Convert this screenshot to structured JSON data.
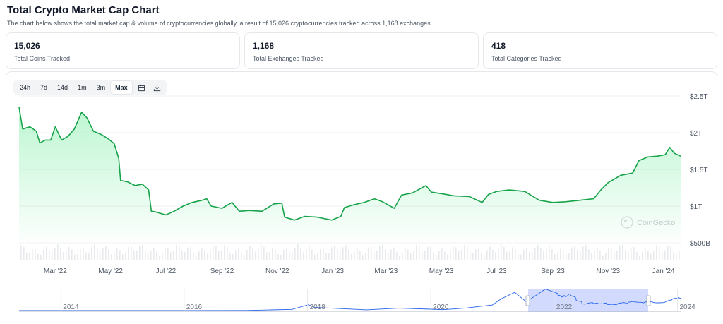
{
  "header": {
    "title": "Total Crypto Market Cap Chart",
    "subtitle": "The chart below shows the total market cap & volume of cryptocurrencies globally, a result of 15,026 cryptocurrencies tracked across 1,168 exchanges."
  },
  "stats": [
    {
      "value": "15,026",
      "label": "Total Coins Tracked"
    },
    {
      "value": "1,168",
      "label": "Total Exchanges Tracked"
    },
    {
      "value": "418",
      "label": "Total Categories Tracked"
    }
  ],
  "toolbar": {
    "ranges": [
      "24h",
      "7d",
      "14d",
      "1m",
      "3m",
      "Max"
    ],
    "active": "Max",
    "icons": [
      "calendar-icon",
      "download-icon"
    ]
  },
  "watermark": "CoinGecko",
  "colors": {
    "line": "#16a34a",
    "area_top": "#86efac",
    "nav_line": "#2563eb",
    "nav_selection": "#c7d2fe",
    "volume": "#d1d5db"
  },
  "chart_data": {
    "type": "area",
    "y_unit": "USD",
    "ylim": [
      500000000000,
      2500000000000
    ],
    "yticks": [
      {
        "value": 500000000000,
        "label": "$500B"
      },
      {
        "value": 1000000000000,
        "label": "$1T"
      },
      {
        "value": 1500000000000,
        "label": "$1.5T"
      },
      {
        "value": 2000000000000,
        "label": "$2T"
      },
      {
        "value": 2500000000000,
        "label": "$2.5T"
      }
    ],
    "xlim": [
      "2022-01-20",
      "2024-01-20"
    ],
    "xticks": [
      {
        "date": "2022-03-01",
        "label": "Mar '22"
      },
      {
        "date": "2022-05-01",
        "label": "May '22"
      },
      {
        "date": "2022-07-01",
        "label": "Jul '22"
      },
      {
        "date": "2022-09-01",
        "label": "Sep '22"
      },
      {
        "date": "2022-11-01",
        "label": "Nov '22"
      },
      {
        "date": "2023-01-01",
        "label": "Jan '23"
      },
      {
        "date": "2023-03-01",
        "label": "Mar '23"
      },
      {
        "date": "2023-05-01",
        "label": "May '23"
      },
      {
        "date": "2023-07-01",
        "label": "Jul '23"
      },
      {
        "date": "2023-09-01",
        "label": "Sep '23"
      },
      {
        "date": "2023-11-01",
        "label": "Nov '23"
      },
      {
        "date": "2024-01-01",
        "label": "Jan '24"
      }
    ],
    "grid": true,
    "series": [
      {
        "data": [
          [
            "2022-01-20",
            2350000000000.0
          ],
          [
            "2022-01-24",
            2050000000000.0
          ],
          [
            "2022-02-01",
            2080000000000.0
          ],
          [
            "2022-02-08",
            2020000000000.0
          ],
          [
            "2022-02-12",
            1860000000000.0
          ],
          [
            "2022-02-18",
            1900000000000.0
          ],
          [
            "2022-02-24",
            1900000000000.0
          ],
          [
            "2022-03-01",
            2080000000000.0
          ],
          [
            "2022-03-08",
            1900000000000.0
          ],
          [
            "2022-03-15",
            1950000000000.0
          ],
          [
            "2022-03-22",
            2050000000000.0
          ],
          [
            "2022-03-30",
            2280000000000.0
          ],
          [
            "2022-04-05",
            2200000000000.0
          ],
          [
            "2022-04-12",
            2020000000000.0
          ],
          [
            "2022-04-20",
            1980000000000.0
          ],
          [
            "2022-04-28",
            1920000000000.0
          ],
          [
            "2022-05-05",
            1850000000000.0
          ],
          [
            "2022-05-10",
            1650000000000.0
          ],
          [
            "2022-05-12",
            1350000000000.0
          ],
          [
            "2022-05-20",
            1330000000000.0
          ],
          [
            "2022-05-28",
            1280000000000.0
          ],
          [
            "2022-06-05",
            1300000000000.0
          ],
          [
            "2022-06-12",
            1220000000000.0
          ],
          [
            "2022-06-15",
            930000000000.0
          ],
          [
            "2022-06-20",
            920000000000.0
          ],
          [
            "2022-07-01",
            880000000000.0
          ],
          [
            "2022-07-10",
            930000000000.0
          ],
          [
            "2022-07-20",
            1000000000000.0
          ],
          [
            "2022-07-30",
            1050000000000.0
          ],
          [
            "2022-08-10",
            1080000000000.0
          ],
          [
            "2022-08-15",
            1100000000000.0
          ],
          [
            "2022-08-20",
            1000000000000.0
          ],
          [
            "2022-09-01",
            970000000000.0
          ],
          [
            "2022-09-12",
            1050000000000.0
          ],
          [
            "2022-09-20",
            930000000000.0
          ],
          [
            "2022-10-01",
            940000000000.0
          ],
          [
            "2022-10-15",
            930000000000.0
          ],
          [
            "2022-10-28",
            1030000000000.0
          ],
          [
            "2022-11-06",
            1040000000000.0
          ],
          [
            "2022-11-09",
            850000000000.0
          ],
          [
            "2022-11-20",
            810000000000.0
          ],
          [
            "2022-12-01",
            860000000000.0
          ],
          [
            "2022-12-15",
            850000000000.0
          ],
          [
            "2022-12-31",
            810000000000.0
          ],
          [
            "2023-01-10",
            860000000000.0
          ],
          [
            "2023-01-14",
            980000000000.0
          ],
          [
            "2023-01-25",
            1020000000000.0
          ],
          [
            "2023-02-05",
            1050000000000.0
          ],
          [
            "2023-02-16",
            1100000000000.0
          ],
          [
            "2023-02-25",
            1060000000000.0
          ],
          [
            "2023-03-10",
            970000000000.0
          ],
          [
            "2023-03-18",
            1150000000000.0
          ],
          [
            "2023-03-30",
            1180000000000.0
          ],
          [
            "2023-04-14",
            1280000000000.0
          ],
          [
            "2023-04-20",
            1190000000000.0
          ],
          [
            "2023-05-01",
            1170000000000.0
          ],
          [
            "2023-05-15",
            1140000000000.0
          ],
          [
            "2023-06-01",
            1130000000000.0
          ],
          [
            "2023-06-15",
            1050000000000.0
          ],
          [
            "2023-06-22",
            1160000000000.0
          ],
          [
            "2023-07-01",
            1200000000000.0
          ],
          [
            "2023-07-15",
            1220000000000.0
          ],
          [
            "2023-08-01",
            1200000000000.0
          ],
          [
            "2023-08-17",
            1080000000000.0
          ],
          [
            "2023-09-01",
            1050000000000.0
          ],
          [
            "2023-09-15",
            1060000000000.0
          ],
          [
            "2023-10-01",
            1080000000000.0
          ],
          [
            "2023-10-16",
            1100000000000.0
          ],
          [
            "2023-10-24",
            1220000000000.0
          ],
          [
            "2023-11-01",
            1320000000000.0
          ],
          [
            "2023-11-15",
            1420000000000.0
          ],
          [
            "2023-11-28",
            1450000000000.0
          ],
          [
            "2023-12-05",
            1620000000000.0
          ],
          [
            "2023-12-15",
            1670000000000.0
          ],
          [
            "2023-12-25",
            1680000000000.0
          ],
          [
            "2024-01-03",
            1700000000000.0
          ],
          [
            "2024-01-08",
            1800000000000.0
          ],
          [
            "2024-01-13",
            1720000000000.0
          ],
          [
            "2024-01-20",
            1680000000000.0
          ]
        ]
      }
    ],
    "navigator": {
      "labels": [
        "2014",
        "2016",
        "2018",
        "2020",
        "2022",
        "2024"
      ],
      "selection_range": [
        "2022-01-20",
        "2024-01-20"
      ]
    }
  }
}
